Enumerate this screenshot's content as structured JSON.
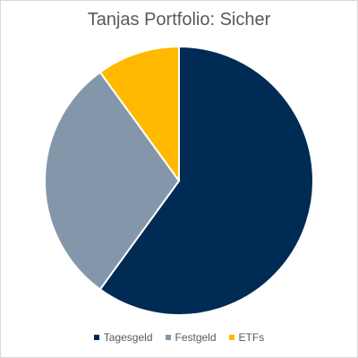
{
  "chart_data": {
    "type": "pie",
    "title": "Tanjas Portfolio: Sicher",
    "categories": [
      "Tagesgeld",
      "Festgeld",
      "ETFs"
    ],
    "values": [
      60,
      30,
      10
    ],
    "colors": [
      "#002b54",
      "#8497aa",
      "#ffb900"
    ],
    "slice_border_color": "#ffffff",
    "start_angle_deg": 0,
    "direction": "clockwise",
    "legend_position": "bottom"
  }
}
